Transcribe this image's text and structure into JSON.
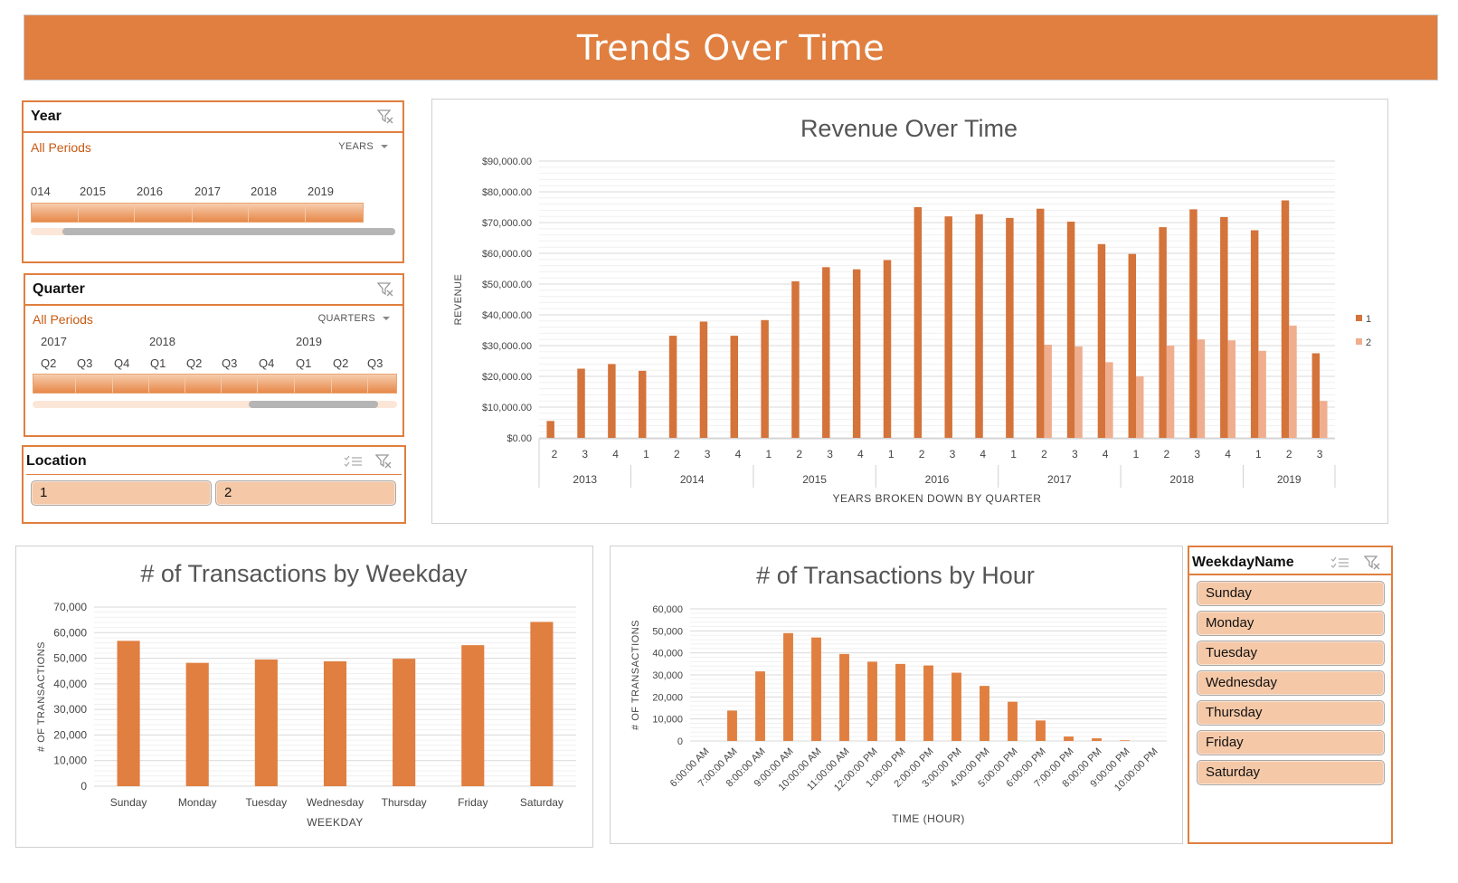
{
  "banner": {
    "title": "Trends Over Time"
  },
  "colors": {
    "accent": "#E07F40",
    "series1": "#D4733A",
    "series2": "#EFAE8E",
    "chip": "#F5C8A7",
    "link": "#C65A11"
  },
  "year_slicer": {
    "title": "Year",
    "selection": "All Periods",
    "level": "YEARS",
    "labels": [
      "014",
      "2015",
      "2016",
      "2017",
      "2018",
      "2019"
    ]
  },
  "quarter_slicer": {
    "title": "Quarter",
    "selection": "All Periods",
    "level": "QUARTERS",
    "years": [
      "2017",
      "2018",
      "2019"
    ],
    "quarters": [
      "Q2",
      "Q3",
      "Q4",
      "Q1",
      "Q2",
      "Q3",
      "Q4",
      "Q1",
      "Q2",
      "Q3"
    ]
  },
  "location_slicer": {
    "title": "Location",
    "items": [
      "1",
      "2"
    ]
  },
  "weekday_slicer": {
    "title": "WeekdayName",
    "items": [
      "Sunday",
      "Monday",
      "Tuesday",
      "Wednesday",
      "Thursday",
      "Friday",
      "Saturday"
    ]
  },
  "icons": {
    "filter": "clear-filter-icon",
    "multi": "multi-select-icon"
  },
  "chart_data": [
    {
      "type": "bar",
      "title": "Revenue Over Time",
      "xlabel": "YEARS BROKEN DOWN BY QUARTER",
      "ylabel": "REVENUE",
      "ylim": [
        0,
        90000
      ],
      "yticks": [
        "$0.00",
        "$10,000.00",
        "$20,000.00",
        "$30,000.00",
        "$40,000.00",
        "$50,000.00",
        "$60,000.00",
        "$70,000.00",
        "$80,000.00",
        "$90,000.00"
      ],
      "categories": [
        "2",
        "3",
        "4",
        "1",
        "2",
        "3",
        "4",
        "1",
        "2",
        "3",
        "4",
        "1",
        "2",
        "3",
        "4",
        "1",
        "2",
        "3",
        "4",
        "1",
        "2",
        "3",
        "4",
        "1",
        "2",
        "3"
      ],
      "groups": [
        {
          "label": "2013",
          "count": 3
        },
        {
          "label": "2014",
          "count": 4
        },
        {
          "label": "2015",
          "count": 4
        },
        {
          "label": "2016",
          "count": 4
        },
        {
          "label": "2017",
          "count": 4
        },
        {
          "label": "2018",
          "count": 4
        },
        {
          "label": "2019",
          "count": 3
        }
      ],
      "series": [
        {
          "name": "1",
          "values": [
            5500,
            22500,
            24000,
            21800,
            33200,
            37800,
            33200,
            38300,
            50900,
            55500,
            54800,
            57800,
            75000,
            72000,
            72700,
            71500,
            74500,
            70300,
            63000,
            59800,
            68500,
            74300,
            71800,
            67500,
            77200,
            27500
          ]
        },
        {
          "name": "2",
          "values": [
            0,
            0,
            0,
            0,
            0,
            0,
            0,
            0,
            0,
            0,
            0,
            0,
            0,
            0,
            0,
            0,
            30300,
            29700,
            24600,
            20000,
            30000,
            32000,
            31700,
            28300,
            36500,
            12000
          ]
        }
      ],
      "legend": "right"
    },
    {
      "type": "bar",
      "title": "# of Transactions by Weekday",
      "xlabel": "WEEKDAY",
      "ylabel": "# OF TRANSACTIONS",
      "ylim": [
        0,
        70000
      ],
      "yticks": [
        "0",
        "10,000",
        "20,000",
        "30,000",
        "40,000",
        "50,000",
        "60,000",
        "70,000"
      ],
      "categories": [
        "Sunday",
        "Monday",
        "Tuesday",
        "Wednesday",
        "Thursday",
        "Friday",
        "Saturday"
      ],
      "values": [
        56800,
        48200,
        49500,
        48800,
        49800,
        55100,
        64200
      ]
    },
    {
      "type": "bar",
      "title": "# of Transactions by Hour",
      "xlabel": "TIME (HOUR)",
      "ylabel": "# OF TRANSACTIONS",
      "ylim": [
        0,
        60000
      ],
      "yticks": [
        "0",
        "10,000",
        "20,000",
        "30,000",
        "40,000",
        "50,000",
        "60,000"
      ],
      "categories": [
        "6:00:00 AM",
        "7:00:00 AM",
        "8:00:00 AM",
        "9:00:00 AM",
        "10:00:00 AM",
        "11:00:00 AM",
        "12:00:00 PM",
        "1:00:00 PM",
        "2:00:00 PM",
        "3:00:00 PM",
        "4:00:00 PM",
        "5:00:00 PM",
        "6:00:00 PM",
        "7:00:00 PM",
        "8:00:00 PM",
        "9:00:00 PM",
        "10:00:00 PM"
      ],
      "values": [
        0,
        13800,
        31600,
        49000,
        47000,
        39500,
        36000,
        35000,
        34300,
        31000,
        25000,
        17800,
        9300,
        2000,
        1200,
        300,
        0
      ]
    }
  ]
}
